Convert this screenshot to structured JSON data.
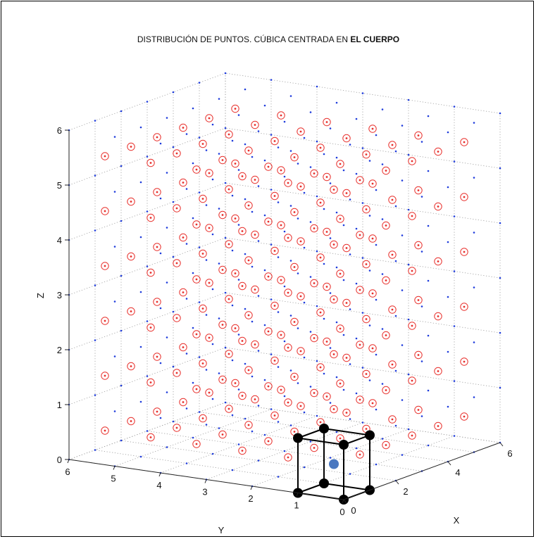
{
  "chart_data": {
    "type": "scatter",
    "title_prefix": "DISTRIBUCIÓN DE PUNTOS. CÚBICA CENTRADA EN ",
    "title_bold": "EL CUERPO",
    "xlabel": "X",
    "ylabel": "Y",
    "zlabel": "Z",
    "xlim": [
      0,
      6
    ],
    "ylim": [
      0,
      6
    ],
    "zlim": [
      0,
      6
    ],
    "x_ticks": [
      "0",
      "2",
      "4",
      "6"
    ],
    "y_ticks": [
      "0",
      "1",
      "2",
      "3",
      "4",
      "5",
      "6"
    ],
    "z_ticks": [
      "0",
      "1",
      "2",
      "3",
      "4",
      "5",
      "6"
    ],
    "grid": true,
    "series": [
      {
        "marker": "blue-dot",
        "lattice": "corner",
        "count_per_axis": 7,
        "start": 0,
        "step": 1,
        "color": "#1f3cdc"
      },
      {
        "marker": "red-circle",
        "lattice": "body-center",
        "count_per_axis": 6,
        "start": 0.5,
        "step": 1,
        "color": "#e8302c"
      }
    ],
    "unit_cell": {
      "corners": [
        [
          0,
          0,
          0
        ],
        [
          1,
          0,
          0
        ],
        [
          0,
          1,
          0
        ],
        [
          1,
          1,
          0
        ],
        [
          0,
          0,
          1
        ],
        [
          1,
          0,
          1
        ],
        [
          0,
          1,
          1
        ],
        [
          1,
          1,
          1
        ]
      ],
      "center": [
        0.5,
        0.5,
        0.5
      ],
      "corner_color": "#000000",
      "center_color": "#4a78c0"
    }
  }
}
